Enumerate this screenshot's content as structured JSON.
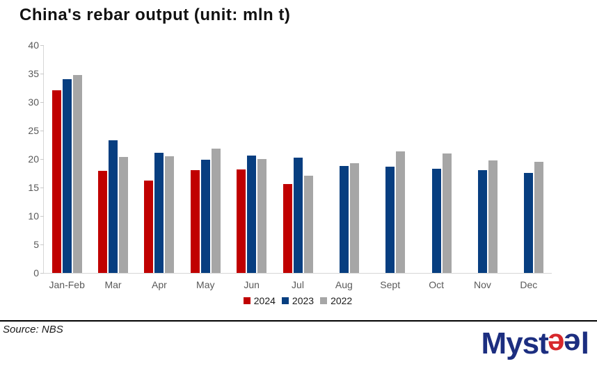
{
  "title": "China's rebar output (unit: mln t)",
  "source": "Source: NBS",
  "logo": {
    "text": "Mysteel",
    "part1": "Myst",
    "e1": "e",
    "e2": "e",
    "part2": "l"
  },
  "colors": {
    "red_2024": "#c00000",
    "blue_2023": "#073e80",
    "gray_2022": "#a6a6a6",
    "axis_text": "#595959",
    "axis_line": "#d6d6d6",
    "logo_navy": "#1c2e80",
    "logo_red": "#d7282c"
  },
  "chart_data": {
    "type": "bar",
    "title": "China's rebar output (unit: mln t)",
    "xlabel": "",
    "ylabel": "",
    "ylim": [
      0,
      40
    ],
    "ytick_step": 5,
    "yticks": [
      0,
      5,
      10,
      15,
      20,
      25,
      30,
      35,
      40
    ],
    "grid": false,
    "legend_position": "bottom-center",
    "categories": [
      "Jan-Feb",
      "Mar",
      "Apr",
      "May",
      "Jun",
      "Jul",
      "Aug",
      "Sept",
      "Oct",
      "Nov",
      "Dec"
    ],
    "series": [
      {
        "name": "2024",
        "color": "#c00000",
        "values": [
          32.1,
          17.9,
          16.2,
          18.0,
          18.2,
          15.6,
          null,
          null,
          null,
          null,
          null
        ]
      },
      {
        "name": "2023",
        "color": "#073e80",
        "values": [
          34.0,
          23.3,
          21.1,
          19.9,
          20.6,
          20.3,
          18.8,
          18.6,
          18.3,
          18.0,
          17.6
        ]
      },
      {
        "name": "2022",
        "color": "#a6a6a6",
        "values": [
          34.8,
          20.4,
          20.5,
          21.8,
          20.0,
          17.1,
          19.3,
          21.3,
          21.0,
          19.8,
          19.5
        ]
      }
    ]
  }
}
